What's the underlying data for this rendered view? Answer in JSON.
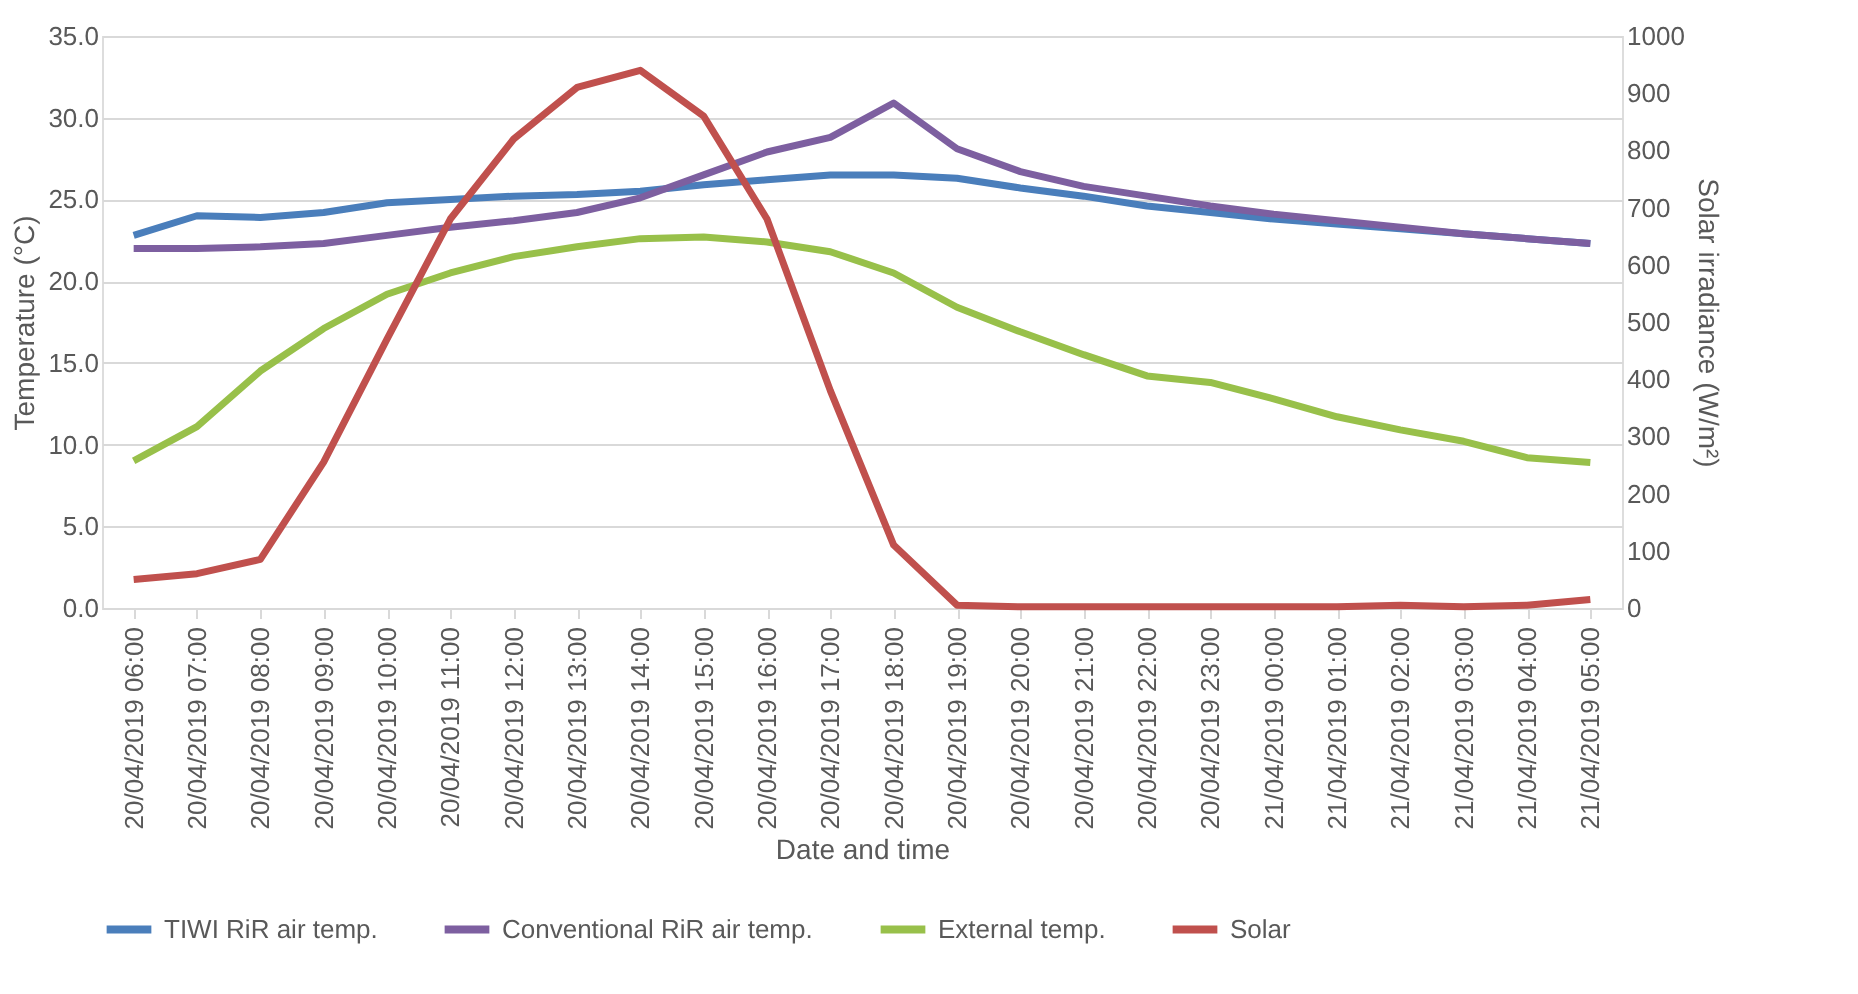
{
  "chart_data": {
    "type": "line",
    "xlabel": "Date and time",
    "ylabel": "Temperature (°C)",
    "y2label": "Solar irradiance (W/m²)",
    "categories": [
      "20/04/2019 06:00",
      "20/04/2019 07:00",
      "20/04/2019 08:00",
      "20/04/2019 09:00",
      "20/04/2019 10:00",
      "20/04/2019 11:00",
      "20/04/2019 12:00",
      "20/04/2019 13:00",
      "20/04/2019 14:00",
      "20/04/2019 15:00",
      "20/04/2019 16:00",
      "20/04/2019 17:00",
      "20/04/2019 18:00",
      "20/04/2019 19:00",
      "20/04/2019 20:00",
      "20/04/2019 21:00",
      "20/04/2019 22:00",
      "20/04/2019 23:00",
      "21/04/2019 00:00",
      "21/04/2019 01:00",
      "21/04/2019 02:00",
      "21/04/2019 03:00",
      "21/04/2019 04:00",
      "21/04/2019 05:00"
    ],
    "series": [
      {
        "name": "TIWI RiR air temp.",
        "color": "#4a7ebb",
        "values": [
          22.8,
          24.0,
          23.9,
          24.2,
          24.8,
          25.0,
          25.2,
          25.3,
          25.5,
          25.9,
          26.2,
          26.5,
          26.5,
          26.3,
          25.7,
          25.2,
          24.6,
          24.2,
          23.8,
          23.5,
          23.2,
          22.9,
          22.6,
          22.3
        ]
      },
      {
        "name": "Conventional RiR air temp.",
        "color": "#7d5fa0",
        "values": [
          22.0,
          22.0,
          22.1,
          22.3,
          22.8,
          23.3,
          23.7,
          24.2,
          25.1,
          26.5,
          27.9,
          28.8,
          30.9,
          28.1,
          26.7,
          25.8,
          25.2,
          24.6,
          24.1,
          23.7,
          23.3,
          22.9,
          22.6,
          22.3
        ]
      },
      {
        "name": "External temp.",
        "color": "#98c04a",
        "values": [
          9.0,
          11.1,
          14.5,
          17.1,
          19.2,
          20.5,
          21.5,
          22.1,
          22.6,
          22.7,
          22.4,
          21.8,
          20.5,
          18.4,
          16.9,
          15.5,
          14.2,
          13.8,
          12.8,
          11.7,
          10.9,
          10.2,
          9.2,
          8.9
        ]
      },
      {
        "name": "Solar",
        "color": "#c0504d",
        "axis": "y2",
        "values": [
          50,
          60,
          85,
          255,
          470,
          680,
          820,
          910,
          940,
          860,
          680,
          380,
          110,
          5,
          2,
          2,
          2,
          2,
          2,
          2,
          5,
          2,
          5,
          15
        ]
      }
    ],
    "ylim": [
      0,
      35
    ],
    "yticks": [
      {
        "value": 0,
        "label": "0.0"
      },
      {
        "value": 5,
        "label": "5.0"
      },
      {
        "value": 10,
        "label": "10.0"
      },
      {
        "value": 15,
        "label": "15.0"
      },
      {
        "value": 20,
        "label": "20.0"
      },
      {
        "value": 25,
        "label": "25.0"
      },
      {
        "value": 30,
        "label": "30.0"
      },
      {
        "value": 35,
        "label": "35.0"
      }
    ],
    "y2lim": [
      0,
      1000
    ],
    "y2ticks": [
      0,
      100,
      200,
      300,
      400,
      500,
      600,
      700,
      800,
      900,
      1000
    ],
    "grid": "y",
    "legend": "bottom",
    "marker": "none",
    "line_style": "solid"
  }
}
